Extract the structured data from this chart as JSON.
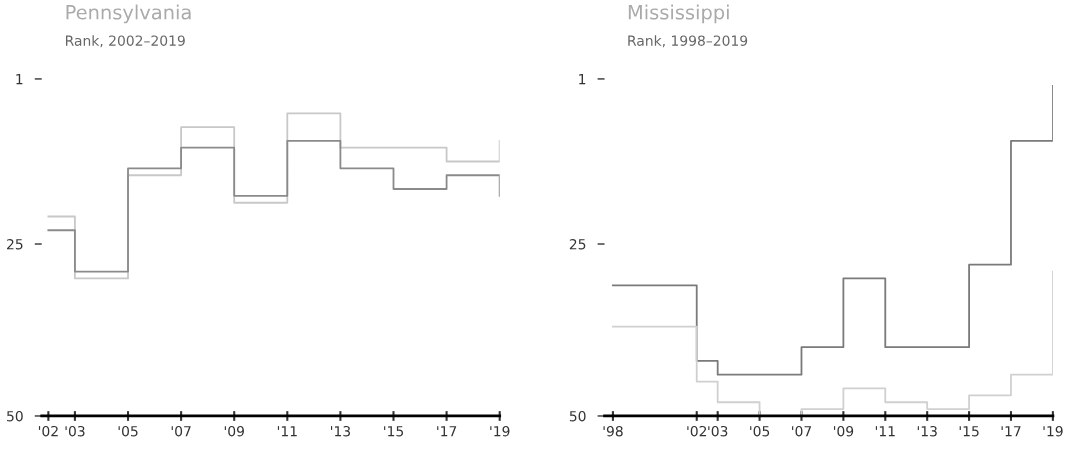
{
  "chart_data": [
    {
      "type": "step",
      "title": "Pennsylvania",
      "subtitle": "Rank, 2002–2019",
      "x": [
        2002,
        2003,
        2005,
        2007,
        2009,
        2011,
        2013,
        2015,
        2017,
        2019
      ],
      "series": [
        {
          "color": "#c8c8c8",
          "values": [
            21,
            30,
            15,
            8,
            19,
            6,
            11,
            11,
            13,
            10
          ]
        },
        {
          "color": "#8a8a8a",
          "values": [
            23,
            29,
            14,
            11,
            18,
            10,
            14,
            17,
            15,
            18
          ]
        }
      ],
      "xlim": [
        2001.75,
        2019
      ],
      "ylim": [
        50,
        1
      ],
      "xticks": [
        {
          "value": 2002,
          "label": "'02"
        },
        {
          "value": 2003,
          "label": "'03"
        },
        {
          "value": 2005,
          "label": "'05"
        },
        {
          "value": 2007,
          "label": "'07"
        },
        {
          "value": 2009,
          "label": "'09"
        },
        {
          "value": 2011,
          "label": "'11"
        },
        {
          "value": 2013,
          "label": "'13"
        },
        {
          "value": 2015,
          "label": "'15"
        },
        {
          "value": 2017,
          "label": "'17"
        },
        {
          "value": 2019,
          "label": "'19"
        }
      ],
      "yticks": [
        1,
        25,
        50
      ],
      "grid": false
    },
    {
      "type": "step",
      "title": "Mississippi",
      "subtitle": "Rank, 1998–2019",
      "x": [
        1998,
        2002,
        2003,
        2005,
        2007,
        2009,
        2011,
        2013,
        2015,
        2017,
        2019
      ],
      "series": [
        {
          "color": "#7a7a7a",
          "values": [
            31,
            42,
            44,
            44,
            40,
            30,
            40,
            40,
            28,
            10,
            2
          ]
        },
        {
          "color": "#d0d0d0",
          "values": [
            37,
            45,
            48,
            50,
            49,
            46,
            48,
            49,
            47,
            44,
            29
          ]
        }
      ],
      "xlim": [
        1997.6,
        2019
      ],
      "ylim": [
        50,
        1
      ],
      "xticks": [
        {
          "value": 1998,
          "label": "'98"
        },
        {
          "value": 2002,
          "label": "'02"
        },
        {
          "value": 2003,
          "label": "'03"
        },
        {
          "value": 2005,
          "label": "'05"
        },
        {
          "value": 2007,
          "label": "'07"
        },
        {
          "value": 2009,
          "label": "'09"
        },
        {
          "value": 2011,
          "label": "'11"
        },
        {
          "value": 2013,
          "label": "'13"
        },
        {
          "value": 2015,
          "label": "'15"
        },
        {
          "value": 2017,
          "label": "'17"
        },
        {
          "value": 2019,
          "label": "'19"
        }
      ],
      "yticks": [
        1,
        25,
        50
      ],
      "grid": false
    }
  ]
}
